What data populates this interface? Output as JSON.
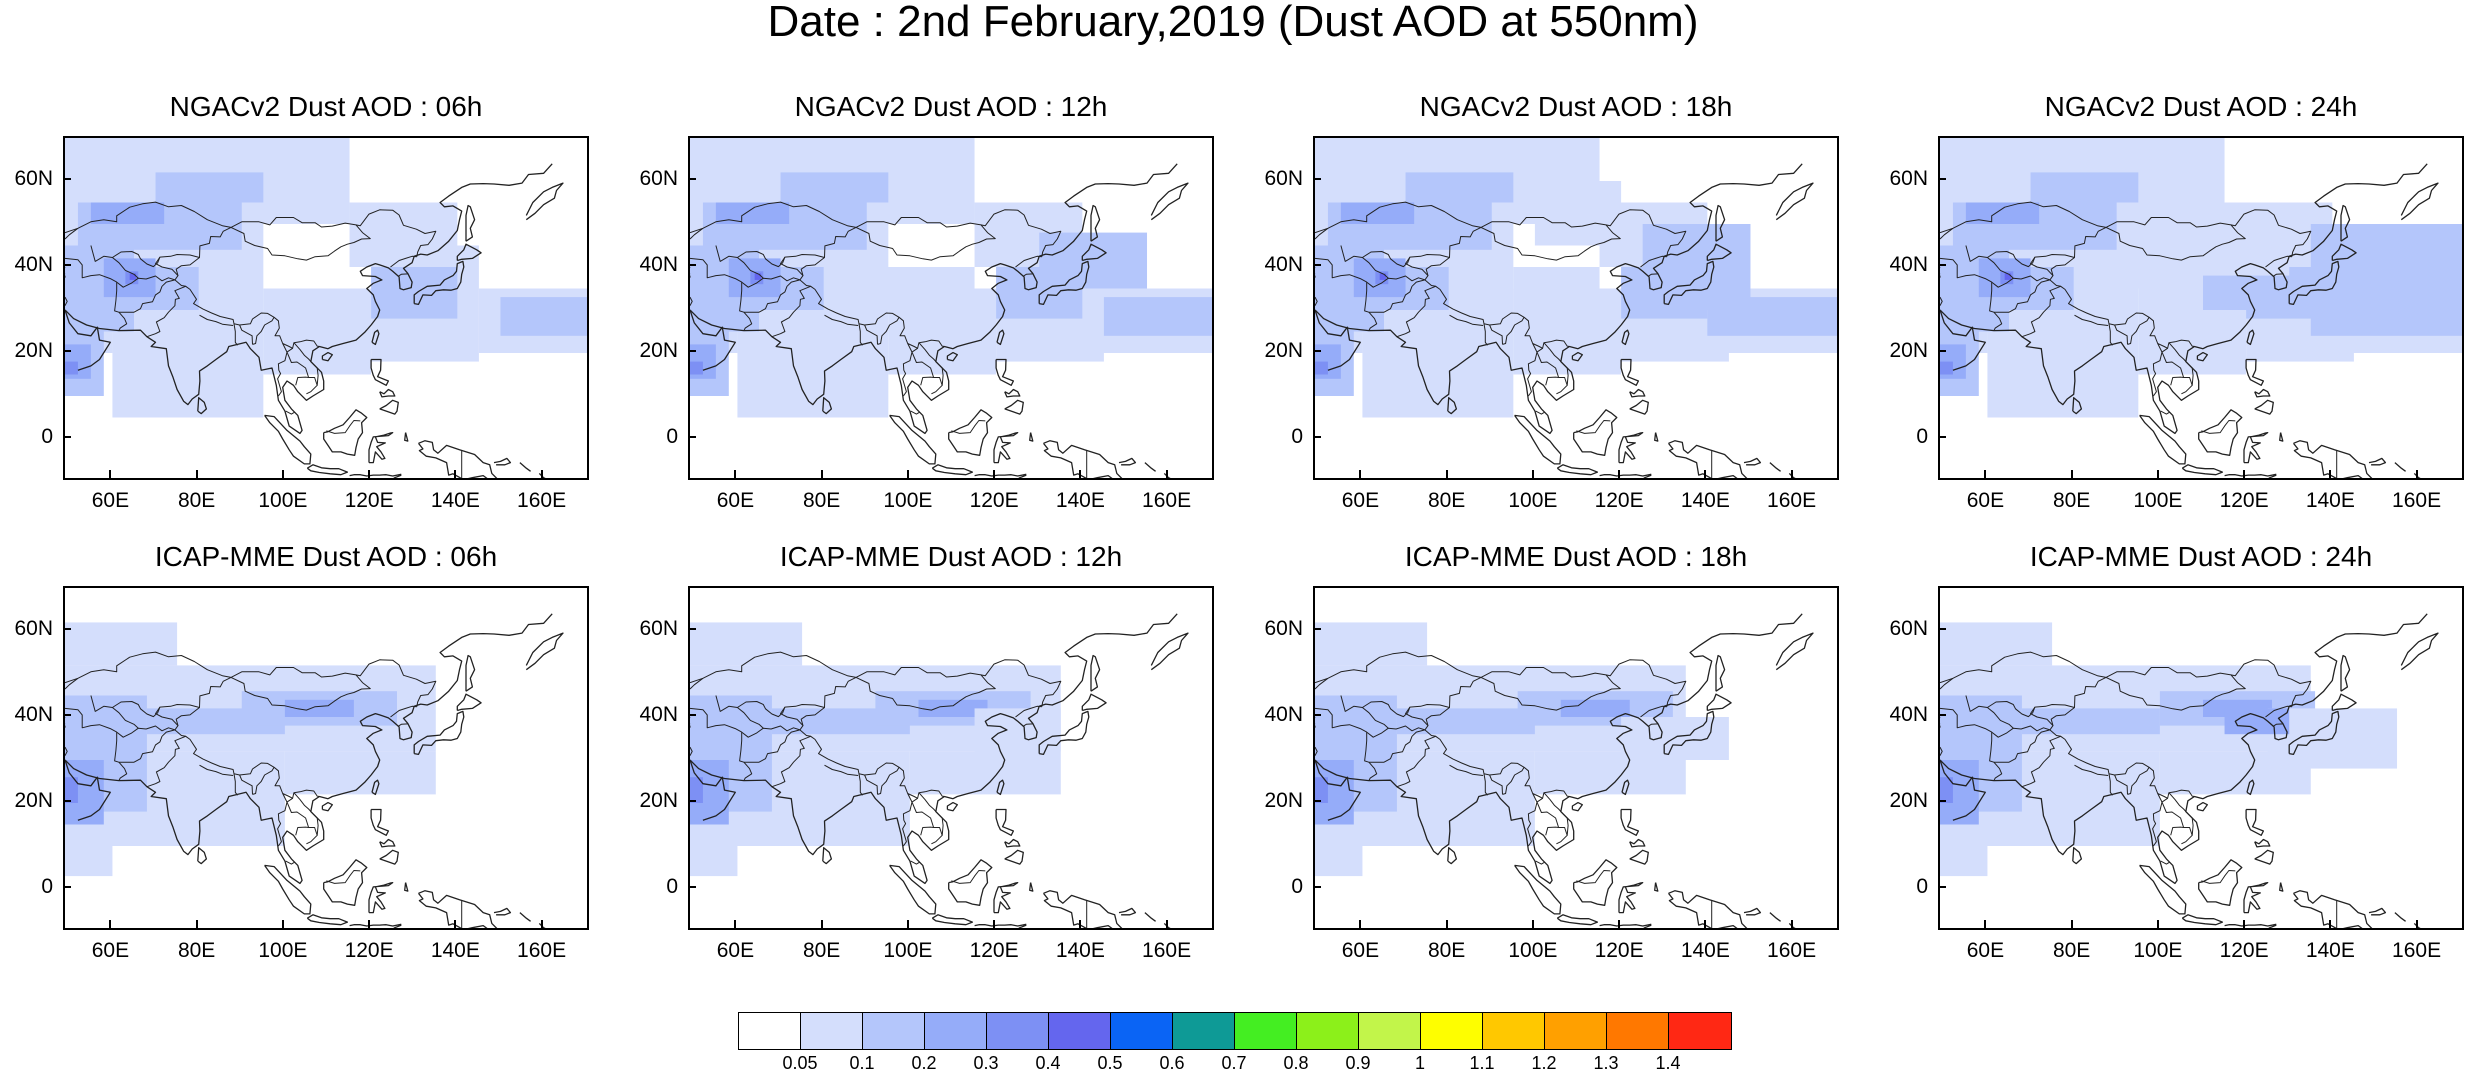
{
  "figure": {
    "title": "Date : 2nd February,2019 (Dust AOD at 550nm)"
  },
  "axes": {
    "xlim": [
      49,
      171
    ],
    "ylim": [
      -10,
      70
    ],
    "x_ticks": [
      {
        "value": 60,
        "label": "60E"
      },
      {
        "value": 80,
        "label": "80E"
      },
      {
        "value": 100,
        "label": "100E"
      },
      {
        "value": 120,
        "label": "120E"
      },
      {
        "value": 140,
        "label": "140E"
      },
      {
        "value": 160,
        "label": "160E"
      }
    ],
    "y_ticks": [
      {
        "value": 60,
        "label": "60N"
      },
      {
        "value": 40,
        "label": "40N"
      },
      {
        "value": 20,
        "label": "20N"
      },
      {
        "value": 0,
        "label": "0"
      }
    ]
  },
  "panels": [
    {
      "title": "NGACv2 Dust AOD : 06h"
    },
    {
      "title": "NGACv2 Dust AOD : 12h"
    },
    {
      "title": "NGACv2 Dust AOD : 18h"
    },
    {
      "title": "NGACv2 Dust AOD : 24h"
    },
    {
      "title": "ICAP-MME Dust AOD : 06h"
    },
    {
      "title": "ICAP-MME Dust AOD : 12h"
    },
    {
      "title": "ICAP-MME Dust AOD : 18h"
    },
    {
      "title": "ICAP-MME Dust AOD : 24h"
    }
  ],
  "colorbar": {
    "labels": [
      "0.05",
      "0.1",
      "0.2",
      "0.3",
      "0.4",
      "0.5",
      "0.6",
      "0.7",
      "0.8",
      "0.9",
      "1",
      "1.1",
      "1.2",
      "1.3",
      "1.4"
    ],
    "colors": [
      "#ffffff",
      "#d4defc",
      "#b4c6fb",
      "#95acf9",
      "#7d90f4",
      "#6466ee",
      "#0a64f5",
      "#0e9a96",
      "#44ee22",
      "#8cf01a",
      "#c2f54a",
      "#fefe00",
      "#ffc800",
      "#ffa000",
      "#ff7800",
      "#ff2814"
    ]
  }
}
